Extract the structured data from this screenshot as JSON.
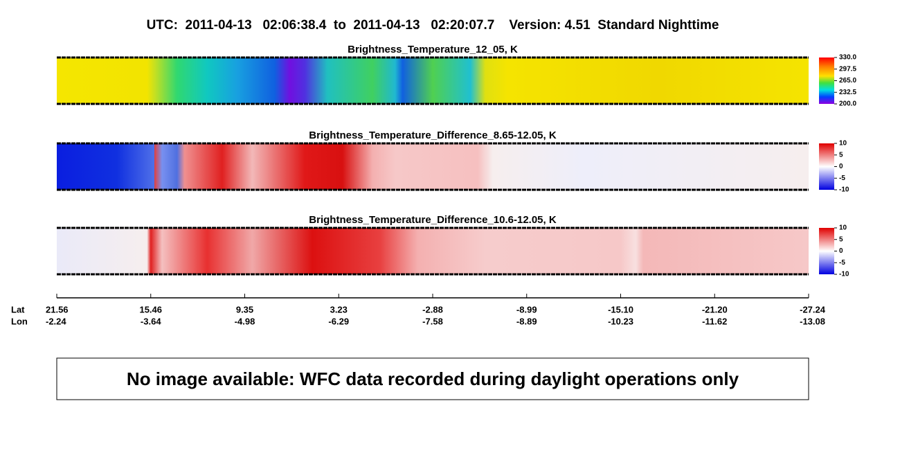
{
  "header": {
    "title": "UTC:  2011-04-13   02:06:38.4  to  2011-04-13   02:20:07.7    Version: 4.51  Standard Nighttime"
  },
  "panels": [
    {
      "title": "Brightness_Temperature_12_05, K",
      "colorbar_ticks": [
        "330.0",
        "297.5",
        "265.0",
        "232.5",
        "200.0"
      ]
    },
    {
      "title": "Brightness_Temperature_Difference_8.65-12.05, K",
      "colorbar_ticks": [
        "10",
        "5",
        "0",
        "-5",
        "-10"
      ]
    },
    {
      "title": "Brightness_Temperature_Difference_10.6-12.05, K",
      "colorbar_ticks": [
        "10",
        "5",
        "0",
        "-5",
        "-10"
      ]
    }
  ],
  "axis": {
    "lat_label": "Lat",
    "lon_label": "Lon",
    "lat": [
      "21.56",
      "15.46",
      "9.35",
      "3.23",
      "-2.88",
      "-8.99",
      "-15.10",
      "-21.20",
      "-27.24"
    ],
    "lon": [
      "-2.24",
      "-3.64",
      "-4.98",
      "-6.29",
      "-7.58",
      "-8.89",
      "-10.23",
      "-11.62",
      "-13.08"
    ]
  },
  "message": "No image available: WFC data recorded during daylight operations only"
}
